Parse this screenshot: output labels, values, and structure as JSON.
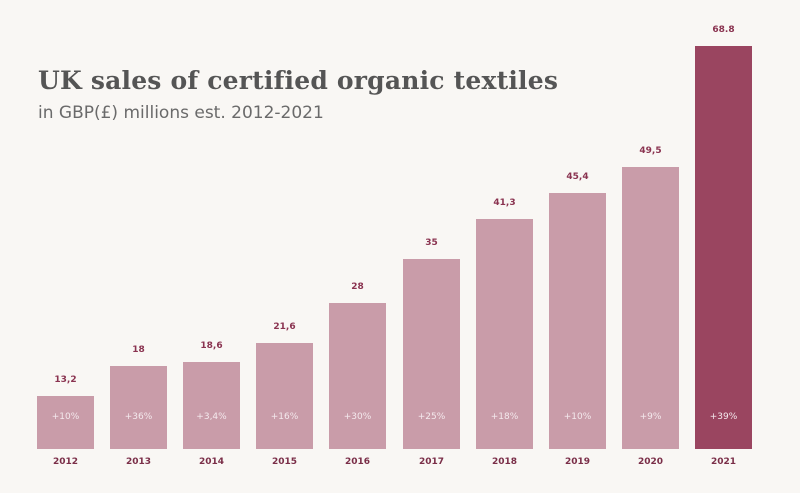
{
  "chart_data": {
    "type": "bar",
    "title": "UK sales of certified organic textiles",
    "subtitle": "in GBP(£) millions est. 2012-2021",
    "xlabel": "",
    "ylabel": "",
    "grid": false,
    "legend": null,
    "categories": [
      "2012",
      "2013",
      "2014",
      "2015",
      "2016",
      "2017",
      "2018",
      "2019",
      "2020",
      "2021"
    ],
    "values": [
      13.2,
      18,
      18.6,
      21.6,
      28,
      35,
      41.3,
      45.4,
      49.5,
      68.8
    ],
    "value_labels": [
      "13,2",
      "18",
      "18,6",
      "21,6",
      "28",
      "35",
      "41,3",
      "45,4",
      "49,5",
      "68.8"
    ],
    "growth_labels": [
      "+10%",
      "+36%",
      "+3,4%",
      "+16%",
      "+30%",
      "+25%",
      "+18%",
      "+10%",
      "+9%",
      "+39%"
    ],
    "colors": {
      "default_bar": "#c99ca9",
      "highlight_bar": "#9a4560",
      "label": "#8a3350"
    },
    "highlight_index": 9
  }
}
